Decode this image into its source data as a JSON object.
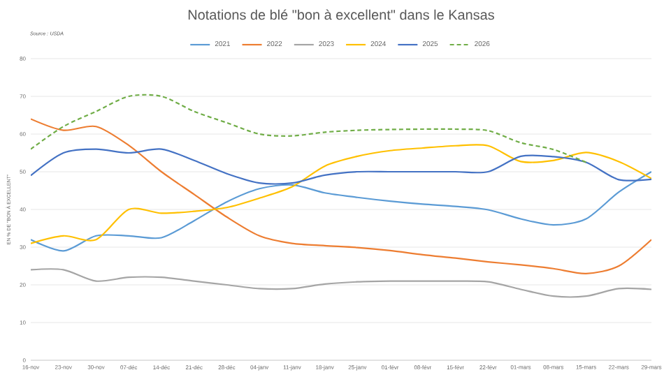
{
  "chart_data": {
    "type": "line",
    "title": "Notations de blé \"bon à excellent\" dans le Kansas",
    "ylabel": "EN % DE \"BON À EXCELLENT\"",
    "annotations": [
      "Source : USDA"
    ],
    "categories": [
      "16-nov",
      "23-nov",
      "30-nov",
      "07-déc",
      "14-déc",
      "21-déc",
      "28-déc",
      "04-janv",
      "11-janv",
      "18-janv",
      "25-janv",
      "01-févr",
      "08-févr",
      "15-févr",
      "22-févr",
      "01-mars",
      "08-mars",
      "15-mars",
      "22-mars",
      "29-mars"
    ],
    "series": [
      {
        "name": "2021",
        "color": "#5b9bd5",
        "values": [
          32,
          29,
          33,
          33,
          32.5,
          37,
          42,
          45.5,
          46.5,
          44.4,
          43.2,
          42.2,
          41.4,
          40.8,
          39.9,
          37.5,
          35.9,
          37.5,
          44.6,
          50
        ]
      },
      {
        "name": "2022",
        "color": "#ed7d31",
        "values": [
          64,
          61,
          62,
          57,
          50,
          44,
          38,
          33,
          31,
          30.4,
          29.9,
          29.1,
          28,
          27.1,
          26.1,
          25.3,
          24.3,
          23,
          25,
          32
        ]
      },
      {
        "name": "2023",
        "color": "#a5a5a5",
        "values": [
          24,
          24,
          21,
          22,
          22,
          21,
          20,
          19,
          19,
          20.2,
          20.8,
          21,
          21,
          21,
          20.8,
          18.8,
          17,
          17,
          19,
          18.8
        ]
      },
      {
        "name": "2024",
        "color": "#ffc000",
        "values": [
          31,
          33,
          32,
          40,
          39,
          39.5,
          40.5,
          43,
          46,
          51.5,
          54.1,
          55.6,
          56.3,
          56.9,
          56.9,
          52.7,
          53,
          55.1,
          52.7,
          48.2
        ]
      },
      {
        "name": "2025",
        "color": "#4472c4",
        "values": [
          49,
          55,
          56,
          55,
          56,
          53,
          49.5,
          47,
          47,
          49.1,
          50,
          50,
          50,
          50,
          50,
          54.1,
          54,
          52.5,
          47.9,
          48
        ]
      },
      {
        "name": "2026",
        "color": "#70ad47",
        "line_style": "dashed",
        "values": [
          56,
          62,
          66,
          70,
          70,
          66,
          63,
          60,
          59.5,
          60.5,
          61,
          61.2,
          61.3,
          61.3,
          60.9,
          57.7,
          55.9,
          52.5,
          null,
          null
        ]
      }
    ],
    "ylim": [
      0,
      80
    ],
    "yticks": [
      0,
      10,
      20,
      30,
      40,
      50,
      60,
      70,
      80
    ],
    "grid": "y",
    "legend": "top",
    "line_style": "solid"
  }
}
